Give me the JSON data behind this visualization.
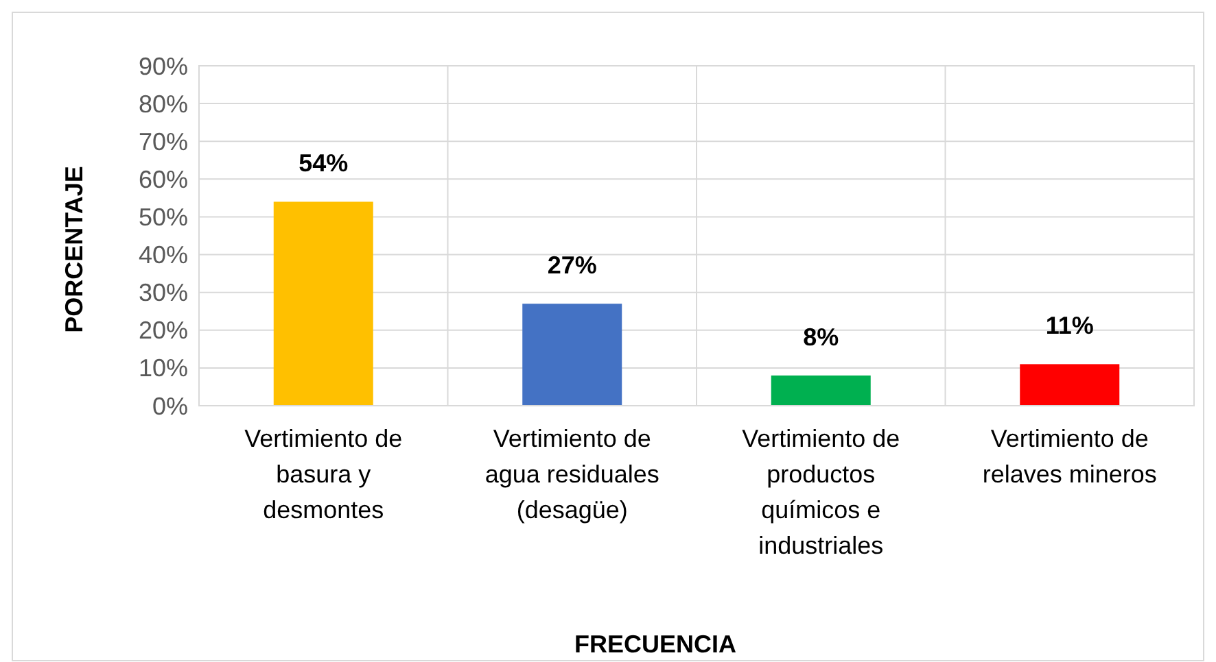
{
  "chart_data": {
    "type": "bar",
    "xlabel": "FRECUENCIA",
    "ylabel": "PORCENTAJE",
    "categories": [
      "Vertimiento de basura y desmontes",
      "Vertimiento de agua residuales (desagüe)",
      "Vertimiento de productos químicos e industriales",
      "Vertimiento de relaves mineros"
    ],
    "values": [
      54,
      27,
      8,
      11
    ],
    "colors": [
      "#ffc000",
      "#4472c4",
      "#00b050",
      "#ff0000"
    ],
    "value_labels": [
      "54%",
      "27%",
      "8%",
      "11%"
    ],
    "ylim": [
      0,
      90
    ],
    "yticks": [
      {
        "value": 0,
        "label": "0%"
      },
      {
        "value": 10,
        "label": "10%"
      },
      {
        "value": 20,
        "label": "20%"
      },
      {
        "value": 30,
        "label": "30%"
      },
      {
        "value": 40,
        "label": "40%"
      },
      {
        "value": 50,
        "label": "50%"
      },
      {
        "value": 60,
        "label": "60%"
      },
      {
        "value": 70,
        "label": "70%"
      },
      {
        "value": 80,
        "label": "80%"
      },
      {
        "value": 90,
        "label": "90%"
      }
    ],
    "grid": true
  }
}
